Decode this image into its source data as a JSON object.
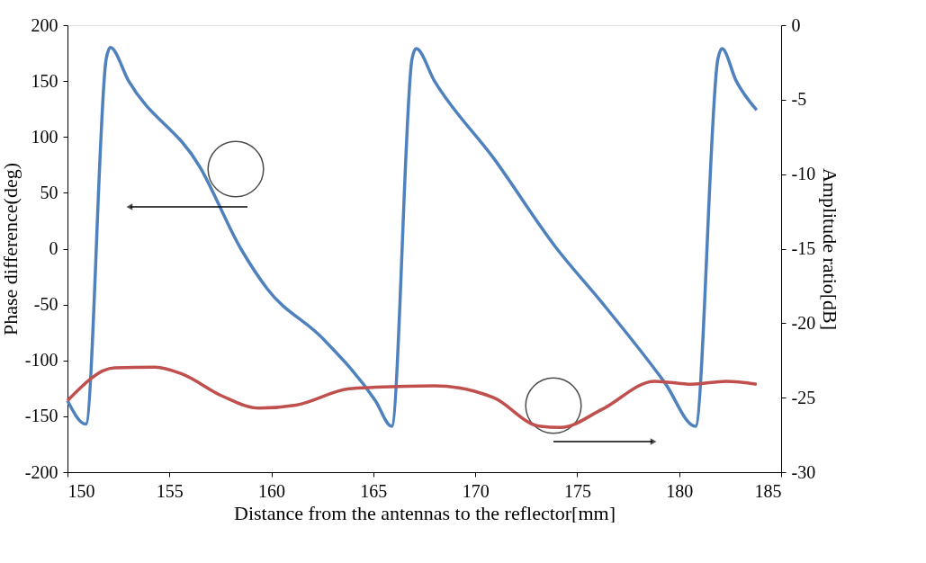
{
  "chart_data": {
    "type": "line",
    "xlabel": "Distance from the antennas to the reflector[mm]",
    "ylabel": "Phase difference(deg)",
    "y2label": "Amplitude ratio[dB]",
    "xlim": [
      150,
      185
    ],
    "xticks": [
      150,
      155,
      160,
      165,
      170,
      175,
      180,
      185
    ],
    "ylim": [
      -200,
      200
    ],
    "yticks": [
      -200,
      -150,
      -100,
      -50,
      0,
      50,
      100,
      150,
      200
    ],
    "y2lim": [
      -30,
      0
    ],
    "y2ticks": [
      -30,
      -25,
      -20,
      -15,
      -10,
      -5,
      0
    ],
    "grid": false,
    "marker": "none",
    "line_style": "solid",
    "series": [
      {
        "color": "#4f81bd",
        "x": [
          150,
          150.9,
          151.9,
          152.1,
          153,
          156.5,
          158.5,
          159.8,
          162.5,
          165.1,
          165.9,
          166.9,
          167.1,
          168,
          170.9,
          174,
          176.2,
          179.3,
          180.8,
          181.9,
          182.1,
          182.8,
          183.8
        ],
        "values": [
          -136,
          -157,
          170,
          180,
          150,
          73,
          0,
          -36,
          -80,
          -136,
          -159,
          170,
          179,
          150,
          81,
          0,
          -48,
          -120,
          -159,
          170,
          179,
          150,
          124
        ]
      },
      {
        "color": "#c0504d",
        "axis": "y2",
        "x": [
          150,
          152.3,
          154.3,
          155.6,
          157.6,
          159.4,
          161.2,
          163.8,
          165.1,
          168,
          170.9,
          173.1,
          174.2,
          176.2,
          178.8,
          180.6,
          182.3,
          183.8
        ],
        "values": [
          -25.2,
          -23.0,
          -22.95,
          -23.4,
          -24.9,
          -25.7,
          -25.5,
          -24.4,
          -24.3,
          -24.2,
          -25.0,
          -26.9,
          -27.0,
          -25.8,
          -23.9,
          -24.1,
          -23.9,
          -24.1
        ]
      }
    ]
  }
}
